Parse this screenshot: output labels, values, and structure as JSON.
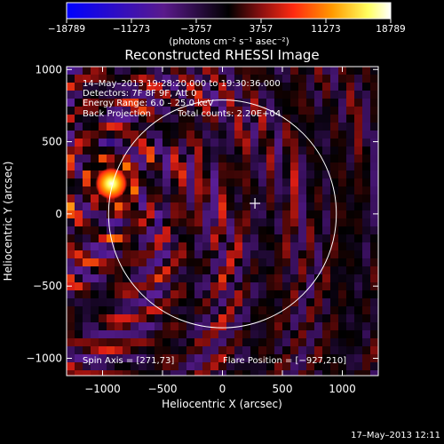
{
  "chart_data": {
    "type": "heatmap",
    "title": "Reconstructed RHESSI Image",
    "xlabel": "Heliocentric X (arcsec)",
    "ylabel": "Heliocentric Y (arcsec)",
    "xlim": [
      -1300,
      1300
    ],
    "ylim": [
      -1120,
      1020
    ],
    "xticks": [
      -1000,
      -500,
      0,
      500,
      1000
    ],
    "yticks": [
      -1000,
      -500,
      0,
      500,
      1000
    ],
    "xtick_labels": [
      "−1000",
      "−500",
      "0",
      "500",
      "1000"
    ],
    "ytick_labels": [
      "−1000",
      "−500",
      "0",
      "500",
      "1000"
    ],
    "colorbar": {
      "range": [
        -18789,
        18789
      ],
      "ticks": [
        -18789,
        -11273,
        -3757,
        3757,
        11273,
        18789
      ],
      "tick_labels": [
        "−18789",
        "−11273",
        "−3757",
        "3757",
        "11273",
        "18789"
      ],
      "unit_label": "(photons cm⁻² s⁻¹ asec⁻²)",
      "colors": [
        "#0000ff",
        "#5a1a8c",
        "#000000",
        "#8a1010",
        "#ff2a10",
        "#ff9a00",
        "#ffff60",
        "#ffffff"
      ]
    },
    "annotations": {
      "time_range": "14–May–2013 19:28:20.000 to 19:30:36.000",
      "detectors": "Detectors: 7F 8F 9F, Att 0",
      "energy": "Energy Range: 6.0 – 25.0 keV",
      "method": "Back Projection",
      "counts": "Total counts: 2.20E+04",
      "spin_axis": "Spin Axis = [271,73]",
      "flare_position": "Flare Position = [−927,210]"
    },
    "flare_source": {
      "x": -927,
      "y": 210
    },
    "solar_limb": {
      "center_x": 0,
      "center_y": 0,
      "radius": 950
    },
    "cross_marker": {
      "x": 271,
      "y": 73
    },
    "grid": false
  },
  "footer": {
    "timestamp": "17–May–2013 12:11"
  }
}
